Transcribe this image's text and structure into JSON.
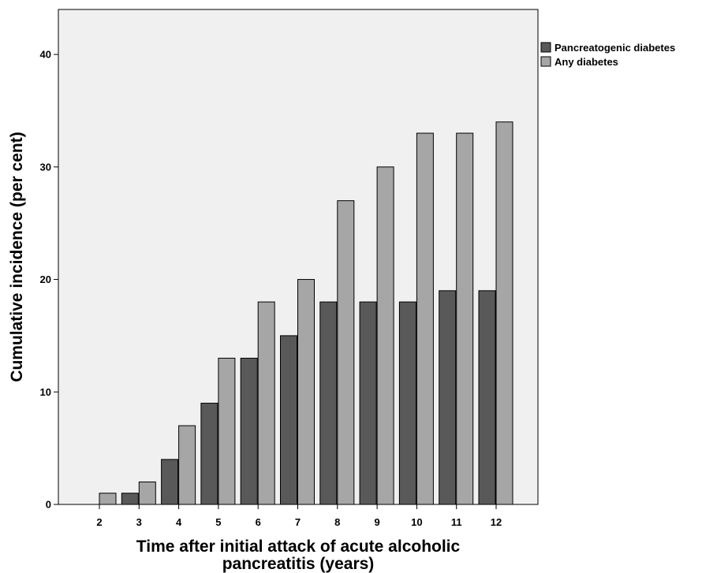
{
  "chart_data": {
    "type": "bar",
    "categories": [
      "2",
      "3",
      "4",
      "5",
      "6",
      "7",
      "8",
      "9",
      "10",
      "11",
      "12"
    ],
    "series": [
      {
        "name": "Pancreatogenic diabetes",
        "color": "#595959",
        "values": [
          0,
          1,
          4,
          9,
          13,
          15,
          18,
          18,
          18,
          19,
          19
        ]
      },
      {
        "name": "Any diabetes",
        "color": "#a6a6a6",
        "values": [
          1,
          2,
          7,
          13,
          18,
          20,
          27,
          30,
          33,
          33,
          34
        ]
      }
    ],
    "xlabel_lines": [
      "Time after initial attack of acute alcoholic",
      "pancreatitis (years)"
    ],
    "ylabel": "Cumulative incidence (per cent)",
    "ylim": [
      0,
      44
    ],
    "yticks": [
      0,
      10,
      20,
      30,
      40
    ],
    "plot_background": "#f0f0f0",
    "grid": false,
    "legend_position": "top-right, outside plot"
  }
}
